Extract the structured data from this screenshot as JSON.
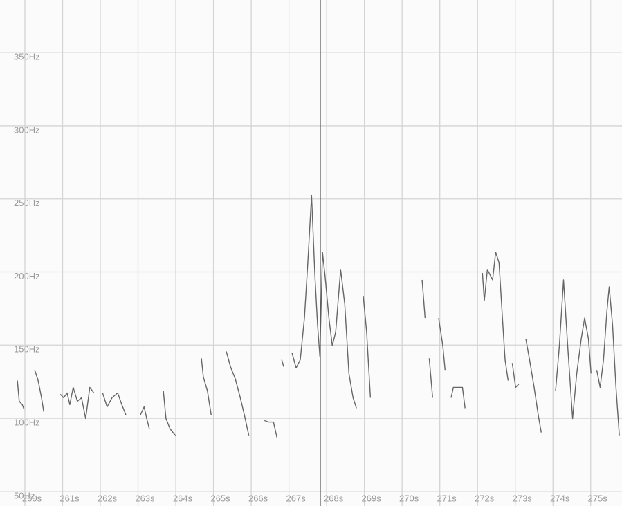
{
  "chart_data": {
    "type": "line",
    "color": "#666666",
    "grid": true,
    "xlim": [
      259.34,
      275.83
    ],
    "ylim": [
      40,
      386
    ],
    "xticks": [
      {
        "value": 260,
        "label": "260s"
      },
      {
        "value": 261,
        "label": "261s"
      },
      {
        "value": 262,
        "label": "262s"
      },
      {
        "value": 263,
        "label": "263s"
      },
      {
        "value": 264,
        "label": "264s"
      },
      {
        "value": 265,
        "label": "265s"
      },
      {
        "value": 266,
        "label": "266s"
      },
      {
        "value": 267,
        "label": "267s"
      },
      {
        "value": 268,
        "label": "268s"
      },
      {
        "value": 269,
        "label": "269s"
      },
      {
        "value": 270,
        "label": "270s"
      },
      {
        "value": 271,
        "label": "271s"
      },
      {
        "value": 272,
        "label": "272s"
      },
      {
        "value": 273,
        "label": "273s"
      },
      {
        "value": 274,
        "label": "274s"
      },
      {
        "value": 275,
        "label": "275s"
      }
    ],
    "yticks": [
      {
        "value": 50,
        "label": "50Hz"
      },
      {
        "value": 100,
        "label": "100Hz"
      },
      {
        "value": 150,
        "label": "150Hz"
      },
      {
        "value": 200,
        "label": "200Hz"
      },
      {
        "value": 250,
        "label": "250Hz"
      },
      {
        "value": 300,
        "label": "300Hz"
      },
      {
        "value": 350,
        "label": "350Hz"
      }
    ],
    "cursor_x": 267.83,
    "x": [
      259.8,
      259.85,
      259.93,
      259.98,
      null,
      260.26,
      260.35,
      260.44,
      260.5,
      null,
      260.94,
      261.03,
      261.12,
      261.19,
      261.28,
      261.39,
      261.5,
      261.61,
      261.72,
      261.83,
      null,
      262.06,
      262.18,
      262.31,
      262.46,
      262.57,
      262.68,
      null,
      263.06,
      263.16,
      263.23,
      263.3,
      null,
      263.67,
      263.74,
      263.85,
      264.0,
      null,
      264.68,
      264.73,
      264.84,
      264.94,
      null,
      265.34,
      265.45,
      265.58,
      265.71,
      265.82,
      265.94,
      null,
      266.35,
      266.46,
      266.59,
      266.68,
      null,
      266.81,
      266.86,
      null,
      267.08,
      267.19,
      267.3,
      267.41,
      267.5,
      267.6,
      267.69,
      267.76,
      267.82,
      267.89,
      267.96,
      268.06,
      268.15,
      268.24,
      268.37,
      268.48,
      268.59,
      268.7,
      268.79,
      null,
      268.97,
      269.06,
      269.16,
      null,
      270.53,
      270.61,
      null,
      270.72,
      270.81,
      null,
      270.97,
      271.08,
      271.14,
      null,
      271.3,
      271.36,
      271.6,
      271.67,
      null,
      272.13,
      272.18,
      272.26,
      272.4,
      272.48,
      272.57,
      272.66,
      272.73,
      272.81,
      null,
      272.92,
      273.01,
      273.1,
      null,
      273.28,
      273.38,
      273.5,
      273.61,
      273.69,
      null,
      274.07,
      274.17,
      274.28,
      274.39,
      274.52,
      274.63,
      274.75,
      274.84,
      274.94,
      275.01,
      null,
      275.16,
      275.25,
      275.34,
      275.43,
      275.49,
      275.58,
      275.67,
      275.76
    ],
    "values": [
      125.8,
      111.6,
      109.3,
      106,
      null,
      133,
      125.8,
      114,
      104.5,
      null,
      116.4,
      114,
      117.3,
      109.3,
      121.1,
      111.6,
      114,
      99.8,
      121.1,
      117.3,
      null,
      117.3,
      107.8,
      114,
      117.3,
      109.3,
      102.1,
      null,
      102.1,
      107.8,
      99.8,
      92.7,
      null,
      118.7,
      99.8,
      92.7,
      87.9,
      null,
      141,
      128.2,
      118.7,
      102.1,
      null,
      145.7,
      135.3,
      126.8,
      114,
      102.1,
      87.9,
      null,
      98.4,
      97.4,
      97.4,
      87,
      null,
      140,
      135.3,
      null,
      144.8,
      134.4,
      140,
      168.5,
      206.4,
      252.4,
      196.9,
      163.7,
      142.4,
      213.5,
      196.9,
      168.5,
      149.5,
      159,
      201.7,
      178,
      130.6,
      114,
      106.9,
      null,
      183.7,
      159,
      114,
      null,
      194.6,
      168.5,
      null,
      141,
      114,
      null,
      168.5,
      149.5,
      133,
      null,
      114,
      121.1,
      121.1,
      106.9,
      null,
      199.3,
      180.3,
      201.7,
      194.6,
      213.5,
      206.4,
      168.5,
      140,
      125.8,
      null,
      137.7,
      121.1,
      123.5,
      null,
      154.3,
      140,
      121.1,
      102.1,
      90.3,
      null,
      118.7,
      149.5,
      194.6,
      149.5,
      99.8,
      130.6,
      154.3,
      168.5,
      154.3,
      130.6,
      null,
      133,
      121.1,
      140,
      173.2,
      189.8,
      163.7,
      121.1,
      87.9
    ]
  }
}
